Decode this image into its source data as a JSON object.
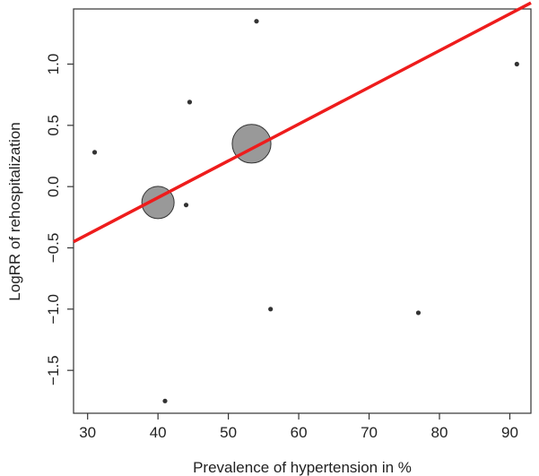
{
  "chart_data": {
    "type": "scatter",
    "title": "",
    "xlabel": "Prevalence of hypertension in %",
    "ylabel": "LogRR of rehospitalization",
    "xlim": [
      28,
      93
    ],
    "ylim": [
      -1.85,
      1.45
    ],
    "x_ticks": [
      30,
      40,
      50,
      60,
      70,
      80,
      90
    ],
    "x_tick_labels": [
      "30",
      "40",
      "50",
      "60",
      "70",
      "80",
      "90"
    ],
    "y_ticks": [
      -1.5,
      -1.0,
      -0.5,
      0.0,
      0.5,
      1.0
    ],
    "y_tick_labels": [
      "−1.5",
      "−1.0",
      "−0.5",
      "0.0",
      "0.5",
      "1.0"
    ],
    "grid": false,
    "series": [
      {
        "marker": "small-point",
        "color": "#333333",
        "points": [
          {
            "x": 31.0,
            "y": 0.28
          },
          {
            "x": 41.0,
            "y": -1.75
          },
          {
            "x": 44.0,
            "y": -0.15
          },
          {
            "x": 44.5,
            "y": 0.69
          },
          {
            "x": 54.0,
            "y": 1.35
          },
          {
            "x": 56.0,
            "y": -1.0
          },
          {
            "x": 77.0,
            "y": -1.03
          },
          {
            "x": 91.0,
            "y": 1.0
          }
        ]
      },
      {
        "marker": "large-circle",
        "color": "#999999",
        "points": [
          {
            "x": 40.0,
            "y": -0.13,
            "weight": 1.0
          },
          {
            "x": 53.3,
            "y": 0.35,
            "weight": 1.2
          }
        ]
      }
    ],
    "regression_line": {
      "color": "#ee1c1c",
      "x": [
        28,
        93
      ],
      "y": [
        -0.45,
        1.5
      ]
    }
  }
}
